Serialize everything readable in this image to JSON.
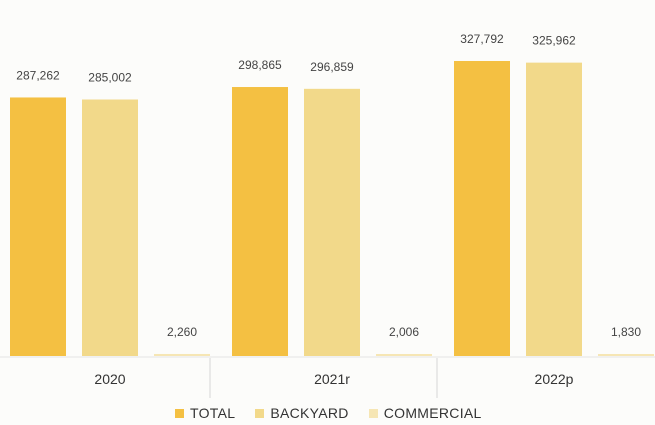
{
  "chart_data": {
    "type": "bar",
    "categories": [
      "2020",
      "2021r",
      "2022p"
    ],
    "series": [
      {
        "name": "TOTAL",
        "values": [
          287262,
          298865,
          327792
        ],
        "labels": [
          "287,262",
          "298,865",
          "327,792"
        ],
        "color": "#f4c042"
      },
      {
        "name": "BACKYARD",
        "values": [
          285002,
          296859,
          325962
        ],
        "labels": [
          "285,002",
          "296,859",
          "325,962"
        ],
        "color": "#f2d98a"
      },
      {
        "name": "COMMERCIAL",
        "values": [
          2260,
          2006,
          1830
        ],
        "labels": [
          "2,260",
          "2,006",
          "1,830"
        ],
        "color": "#f6e6b4"
      }
    ],
    "ylim": [
      0,
      340000
    ],
    "grid": false,
    "legend_position": "bottom"
  }
}
